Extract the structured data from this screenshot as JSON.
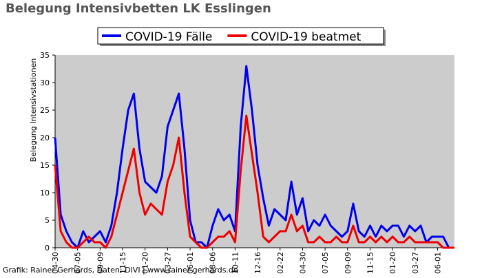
{
  "chart_data": {
    "type": "line",
    "title": "Belegung Intensivbetten LK Esslingen",
    "y_label": "Belegung Intensivstationen",
    "footer": "Grafik: Rainer Gerhards, Daten: DIVI | www.rainer-gerhards.de",
    "categories": [
      "04-30",
      null,
      null,
      null,
      "07-05",
      null,
      null,
      null,
      "09-09",
      null,
      null,
      null,
      "11-15",
      null,
      null,
      null,
      "01-20",
      null,
      null,
      null,
      "03-27",
      null,
      null,
      null,
      "06-01",
      null,
      null,
      null,
      "08-06",
      null,
      null,
      null,
      "10-11",
      null,
      null,
      null,
      "12-16",
      null,
      null,
      null,
      "02-22",
      null,
      null,
      null,
      "04-30",
      null,
      null,
      null,
      "07-05",
      null,
      null,
      null,
      "09-09",
      null,
      null,
      null,
      "11-15",
      null,
      null,
      null,
      "01-20",
      null,
      null,
      null,
      "03-27",
      null,
      null,
      null,
      "06-01",
      null,
      null,
      null
    ],
    "series": [
      {
        "name": "COVID-19 Fälle",
        "color": "#0000ee",
        "values": [
          20,
          6,
          3,
          1,
          0,
          3,
          1,
          2,
          3,
          1,
          4,
          10,
          18,
          25,
          28,
          18,
          12,
          11,
          10,
          13,
          22,
          25,
          28,
          18,
          5,
          1,
          1,
          0,
          4,
          7,
          5,
          6,
          3,
          22,
          33,
          25,
          15,
          9,
          4,
          7,
          6,
          5,
          12,
          6,
          9,
          3,
          5,
          4,
          6,
          4,
          3,
          2,
          3,
          8,
          3,
          2,
          4,
          2,
          4,
          3,
          4,
          4,
          2,
          4,
          3,
          4,
          1,
          2,
          2,
          2,
          0,
          0
        ]
      },
      {
        "name": "COVID-19 beatmet",
        "color": "#ee0000",
        "values": [
          15,
          3,
          1,
          0,
          0,
          1,
          2,
          1,
          1,
          0,
          2,
          6,
          10,
          14,
          18,
          10,
          6,
          8,
          7,
          6,
          12,
          15,
          20,
          10,
          2,
          1,
          0,
          0,
          1,
          2,
          2,
          3,
          1,
          14,
          24,
          17,
          10,
          2,
          1,
          2,
          3,
          3,
          6,
          3,
          4,
          1,
          1,
          2,
          1,
          1,
          2,
          1,
          1,
          4,
          1,
          1,
          2,
          1,
          2,
          1,
          2,
          1,
          1,
          2,
          1,
          1,
          1,
          1,
          1,
          0,
          0,
          0
        ]
      }
    ],
    "ylim": [
      0,
      35
    ],
    "yticks": [
      0,
      5,
      10,
      15,
      20,
      25,
      30,
      35
    ],
    "legend": "top"
  }
}
